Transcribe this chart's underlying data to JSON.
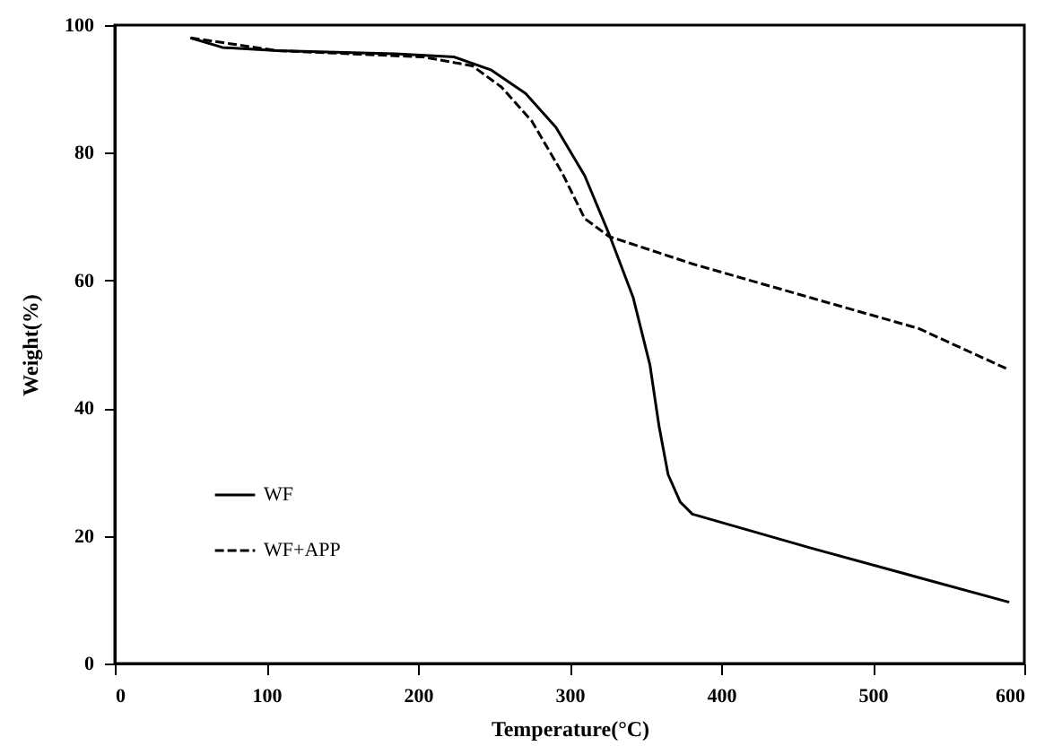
{
  "chart_data": {
    "type": "line",
    "xlabel": "Temperature(°C)",
    "ylabel": "Weight(%)",
    "xlim": [
      0,
      600
    ],
    "ylim": [
      0,
      100
    ],
    "xticks": [
      0,
      100,
      200,
      300,
      400,
      500,
      600
    ],
    "yticks": [
      0,
      20,
      40,
      60,
      80,
      100
    ],
    "grid": false,
    "legend": "bottom left",
    "marker": "none",
    "series": [
      {
        "name": "WF",
        "color": "#000000",
        "line_style": "solid",
        "x": [
          50,
          71,
          107,
          185,
          224,
          248,
          271,
          291,
          310,
          326,
          342,
          353,
          359,
          365,
          373,
          381,
          459,
          590
        ],
        "values": [
          98,
          96.5,
          96,
          95.5,
          95,
          93,
          89.3,
          84,
          76.4,
          67.3,
          57.3,
          46.8,
          37.2,
          29.6,
          25.3,
          23.4,
          18.1,
          9.6
        ]
      },
      {
        "name": "WF+APP",
        "color": "#000000",
        "line_style": "dashed",
        "x": [
          50,
          107,
          204,
          236,
          255,
          275,
          295,
          310,
          326,
          381,
          459,
          530,
          590
        ],
        "values": [
          98,
          96,
          95,
          93.6,
          90.3,
          85,
          76.9,
          69.7,
          66.9,
          62.6,
          57.3,
          52.5,
          46
        ]
      }
    ]
  }
}
